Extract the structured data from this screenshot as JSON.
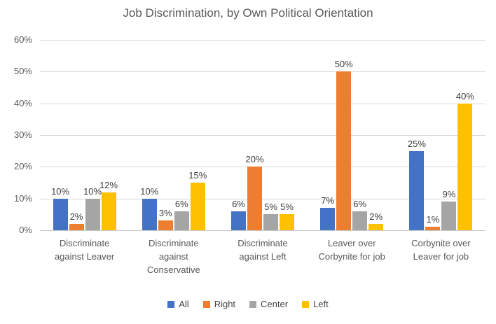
{
  "title": "Job Discrimination, by Own Political Orientation",
  "chart_data": {
    "type": "bar",
    "title": "Job Discrimination, by Own Political Orientation",
    "unit": "%",
    "categories": [
      "Discriminate against Leaver",
      "Discriminate against Conservative",
      "Discriminate against Left",
      "Leaver over Corbynite for job",
      "Corbynite over Leaver for job"
    ],
    "series": [
      {
        "name": "All",
        "color": "#4472C4",
        "values": [
          10,
          10,
          6,
          7,
          25
        ]
      },
      {
        "name": "Right",
        "color": "#ED7D31",
        "values": [
          2,
          3,
          20,
          50,
          1
        ]
      },
      {
        "name": "Center",
        "color": "#A5A5A5",
        "values": [
          10,
          6,
          5,
          6,
          9
        ]
      },
      {
        "name": "Left",
        "color": "#FFC000",
        "values": [
          12,
          15,
          5,
          2,
          40
        ]
      }
    ],
    "ylim": [
      0,
      60
    ],
    "ticks": [
      0,
      10,
      20,
      30,
      40,
      50,
      60
    ],
    "grid": true,
    "legend_position": "bottom",
    "grid_color": "#D9D9D9",
    "axis_text_color": "#595959",
    "data_label_color": "#3D3D3D"
  }
}
